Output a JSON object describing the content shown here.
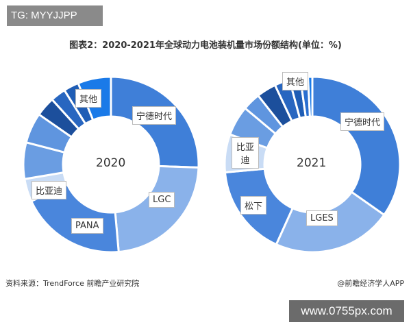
{
  "watermark_top": "TG: MYYJJPP",
  "watermark_bottom": "www.0755px.com",
  "title": "图表2：2020-2021年全球动力电池装机量市场份额结构(单位：%)",
  "source": "资料来源：TrendForce 前瞻产业研究院",
  "app_credit": "@前瞻经济学人APP",
  "chart_data": [
    {
      "type": "pie",
      "variant": "donut",
      "center_label": "2020",
      "slices": [
        {
          "label": "宁德时代",
          "value": 25.5,
          "color": "#3f7fd8"
        },
        {
          "label": "LGC",
          "value": 23,
          "color": "#8ab2ea"
        },
        {
          "label": "PANA",
          "value": 19.5,
          "color": "#4a86dc"
        },
        {
          "label": "比亚迪",
          "value": 4.2,
          "color": "#c9dcf5"
        },
        {
          "label": "",
          "value": 6.7,
          "color": "#6a9de2"
        },
        {
          "label": "",
          "value": 5.6,
          "color": "#5f95df"
        },
        {
          "label": "",
          "value": 3.6,
          "color": "#1c4f9c"
        },
        {
          "label": "",
          "value": 2.8,
          "color": "#2866c0"
        },
        {
          "label": "",
          "value": 2.8,
          "color": "#1f5db5"
        },
        {
          "label": "其他",
          "value": 6.1,
          "color": "#1a7ae8"
        }
      ]
    },
    {
      "type": "pie",
      "variant": "donut",
      "center_label": "2021",
      "slices": [
        {
          "label": "宁德时代",
          "value": 34.7,
          "color": "#3f7fd8"
        },
        {
          "label": "LGES",
          "value": 22,
          "color": "#8ab2ea"
        },
        {
          "label": "松下",
          "value": 16.8,
          "color": "#4a86dc"
        },
        {
          "label": "比亚迪",
          "value": 7,
          "color": "#c9dcf5"
        },
        {
          "label": "",
          "value": 5.5,
          "color": "#6a9de2"
        },
        {
          "label": "",
          "value": 3.3,
          "color": "#5f95df"
        },
        {
          "label": "",
          "value": 3.6,
          "color": "#1c4f9c"
        },
        {
          "label": "",
          "value": 2.8,
          "color": "#2866c0"
        },
        {
          "label": "",
          "value": 2,
          "color": "#1f5db5"
        },
        {
          "label": "",
          "value": 1.4,
          "color": "#2a6fd0"
        },
        {
          "label": "其他",
          "value": 0.8,
          "color": "#1a7ae8"
        }
      ]
    }
  ]
}
